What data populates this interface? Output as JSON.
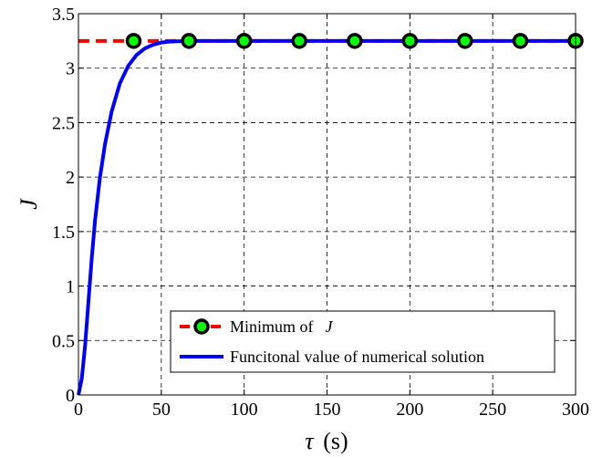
{
  "chart_data": {
    "type": "line",
    "title": "",
    "xlabel": "τ",
    "xlabel_unit": "(s)",
    "ylabel": "J",
    "xlim": [
      0,
      300
    ],
    "ylim": [
      0,
      3.5
    ],
    "xticks": [
      0,
      50,
      100,
      150,
      200,
      250,
      300
    ],
    "yticks": [
      0,
      0.5,
      1,
      1.5,
      2,
      2.5,
      3,
      3.5
    ],
    "xtick_labels": [
      "0",
      "50",
      "100",
      "150",
      "200",
      "250",
      "300"
    ],
    "ytick_labels": [
      "0",
      "0.5",
      "1",
      "1.5",
      "2",
      "2.5",
      "3",
      "3.5"
    ],
    "grid": true,
    "legend_position": "bottom-right",
    "series": [
      {
        "name_prefix": "Minimum of ",
        "name_var": "J",
        "style": "dashed-with-markers",
        "color": "#ff0000",
        "marker_fill": "#00ff00",
        "marker_edge": "#000000",
        "x": [
          0,
          33.3,
          66.7,
          100,
          133.3,
          166.7,
          200,
          233.3,
          266.7,
          300
        ],
        "y": [
          3.25,
          3.25,
          3.25,
          3.25,
          3.25,
          3.25,
          3.25,
          3.25,
          3.25,
          3.25
        ],
        "marker_x": [
          33.3,
          66.7,
          100,
          133.3,
          166.7,
          200,
          233.3,
          266.7,
          300
        ]
      },
      {
        "name": "Funcitonal value of numerical solution",
        "style": "solid",
        "color": "#0000ff",
        "x": [
          0,
          2,
          4,
          6,
          8,
          10,
          13,
          16,
          20,
          25,
          30,
          35,
          40,
          45,
          50,
          55,
          60,
          70,
          80,
          100,
          150,
          200,
          250,
          300
        ],
        "y": [
          0.0,
          0.15,
          0.45,
          0.85,
          1.25,
          1.6,
          2.0,
          2.3,
          2.6,
          2.86,
          3.02,
          3.12,
          3.18,
          3.215,
          3.235,
          3.243,
          3.247,
          3.25,
          3.25,
          3.25,
          3.25,
          3.25,
          3.25,
          3.25
        ]
      }
    ]
  }
}
